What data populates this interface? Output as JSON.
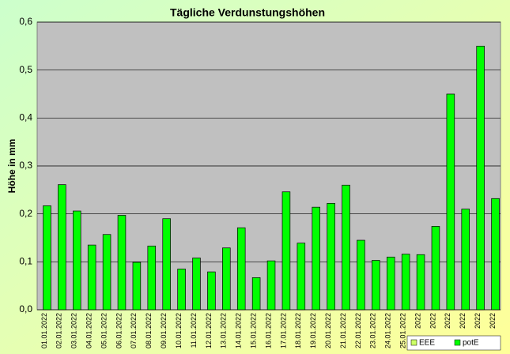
{
  "chart_data": {
    "type": "bar",
    "title": "Tägliche Verdunstungshöhen",
    "y_label": "Höhe in mm",
    "categories": [
      "01.01.2022",
      "02.01.2022",
      "03.01.2022",
      "04.01.2022",
      "05.01.2022",
      "06.01.2022",
      "07.01.2022",
      "08.01.2022",
      "09.01.2022",
      "10.01.2022",
      "11.01.2022",
      "12.01.2022",
      "13.01.2022",
      "14.01.2022",
      "15.01.2022",
      "16.01.2022",
      "17.01.2022",
      "18.01.2022",
      "19.01.2022",
      "20.01.2022",
      "21.01.2022",
      "22.01.2022",
      "23.01.2022",
      "24.01.2022",
      "25.01.2022",
      "2022",
      "2022",
      "2022",
      "2022",
      "2022",
      "2022"
    ],
    "series": [
      {
        "name": "EEE",
        "color": "#ccff66",
        "values": [
          null,
          null,
          null,
          null,
          null,
          null,
          null,
          null,
          null,
          null,
          null,
          null,
          null,
          null,
          null,
          null,
          null,
          null,
          null,
          null,
          null,
          null,
          null,
          null,
          null,
          null,
          null,
          null,
          null,
          null,
          null
        ]
      },
      {
        "name": "potE",
        "color": "#00ff00",
        "values": [
          0.217,
          0.261,
          0.206,
          0.135,
          0.157,
          0.197,
          0.099,
          0.133,
          0.19,
          0.085,
          0.108,
          0.079,
          0.129,
          0.171,
          0.067,
          0.102,
          0.246,
          0.139,
          0.214,
          0.222,
          0.26,
          0.145,
          0.103,
          0.11,
          0.116,
          0.115,
          0.174,
          0.45,
          0.21,
          0.55,
          0.232
        ]
      }
    ],
    "ylim": [
      0,
      0.6
    ],
    "yticks": [
      {
        "value": 0,
        "label": "0,0"
      },
      {
        "value": 0.1,
        "label": "0,1"
      },
      {
        "value": 0.2,
        "label": "0,2"
      },
      {
        "value": 0.3,
        "label": "0,3"
      },
      {
        "value": 0.4,
        "label": "0,4"
      },
      {
        "value": 0.5,
        "label": "0,5"
      },
      {
        "value": 0.6,
        "label": "0,6"
      }
    ],
    "grid": true
  }
}
